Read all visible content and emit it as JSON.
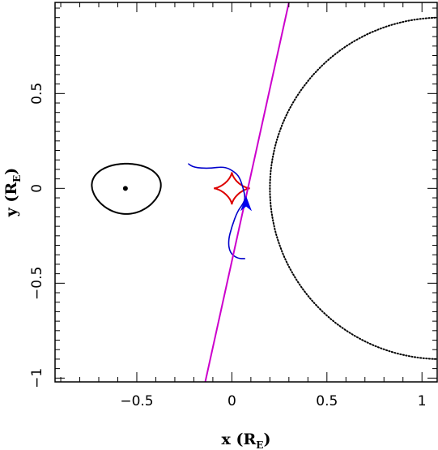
{
  "chart_data": {
    "type": "line",
    "xlabel": "x (R",
    "xlabel_sub": "E",
    "xlabel_close": ")",
    "ylabel": "y (R",
    "ylabel_sub": "E",
    "ylabel_close": ")",
    "xlim": [
      -0.93,
      1.08
    ],
    "ylim": [
      -1.02,
      0.98
    ],
    "x_ticks": [
      {
        "value": -0.5,
        "label": "−0.5"
      },
      {
        "value": 0,
        "label": "0"
      },
      {
        "value": 0.5,
        "label": "0.5"
      },
      {
        "value": 1,
        "label": "1"
      }
    ],
    "y_ticks": [
      {
        "value": -1,
        "label": "−1"
      },
      {
        "value": -0.5,
        "label": "−0.5"
      },
      {
        "value": 0,
        "label": "0"
      },
      {
        "value": 0.5,
        "label": "0.5"
      }
    ],
    "x_minor_step": 0.1,
    "y_minor_step": 0.05,
    "grid": false,
    "elements": {
      "lens_point": {
        "x": -0.56,
        "y": 0.0,
        "color": "#000000"
      },
      "planetary_caustic_loop": {
        "center_x": -0.555,
        "center_y": 0.0,
        "rx": 0.18,
        "ry_top": 0.13,
        "ry_bottom": 0.135,
        "color": "#000000"
      },
      "central_caustic": {
        "center_x": 0.0,
        "center_y": 0.0,
        "rx": 0.095,
        "ry": 0.085,
        "color": "#dd0000"
      },
      "source_trajectory": {
        "x1": -0.14,
        "y1": -1.02,
        "x2": 0.3,
        "y2": 0.98,
        "color": "#cc00cc"
      },
      "einstein_ring_arc": {
        "center_x": 1.1,
        "center_y": 0.0,
        "radius": 0.9,
        "style": "dotted",
        "color": "#000000"
      },
      "perturbation_path": {
        "color": "#0000cc",
        "points": [
          [
            -0.23,
            0.13
          ],
          [
            -0.2,
            0.11
          ],
          [
            -0.12,
            0.105
          ],
          [
            -0.04,
            0.115
          ],
          [
            0.01,
            0.09
          ],
          [
            0.04,
            0.06
          ],
          [
            0.06,
            0.0
          ],
          [
            0.07,
            -0.05
          ],
          [
            0.06,
            -0.08
          ],
          [
            0.03,
            -0.12
          ],
          [
            0.0,
            -0.2
          ],
          [
            -0.02,
            -0.28
          ],
          [
            -0.01,
            -0.34
          ],
          [
            0.03,
            -0.37
          ],
          [
            0.07,
            -0.37
          ]
        ]
      },
      "arrow": {
        "x": 0.075,
        "y_tip": -0.04,
        "y_base": -0.12,
        "half_width": 0.03,
        "color": "#0000ee"
      }
    }
  }
}
